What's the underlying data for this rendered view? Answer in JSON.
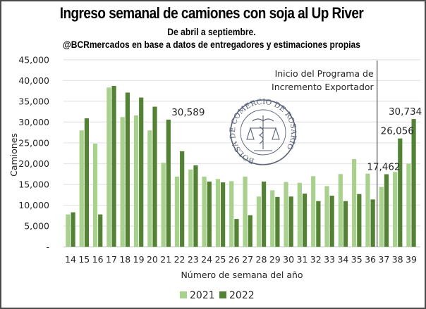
{
  "chart_data": {
    "type": "bar",
    "title": "Ingreso semanal de camiones con soja al Up River",
    "subtitle": "De abril a septiembre.",
    "source": "@BCRmercados en base a datos de entregadores y estimaciones propias",
    "xlabel": "Número de semana del año",
    "ylabel": "Camiones",
    "ylim": [
      0,
      45000
    ],
    "yticks": [
      0,
      5000,
      10000,
      15000,
      20000,
      25000,
      30000,
      35000,
      40000,
      45000
    ],
    "ytick_labels": [
      "-",
      "5,000",
      "10,000",
      "15,000",
      "20,000",
      "25,000",
      "30,000",
      "35,000",
      "40,000",
      "45,000"
    ],
    "grid": true,
    "legend_position": "bottom",
    "categories": [
      "14",
      "15",
      "16",
      "17",
      "18",
      "19",
      "20",
      "21",
      "22",
      "23",
      "24",
      "25",
      "26",
      "27",
      "28",
      "29",
      "30",
      "31",
      "32",
      "33",
      "34",
      "35",
      "36",
      "37",
      "38",
      "39"
    ],
    "series": [
      {
        "name": "2021",
        "color": "#a9d18e",
        "values": [
          7800,
          28000,
          24800,
          38300,
          31200,
          31600,
          28000,
          20200,
          16900,
          18600,
          16900,
          16300,
          15800,
          16900,
          12100,
          13600,
          15600,
          15400,
          17000,
          14600,
          17500,
          21100,
          17600,
          14400,
          18000,
          20000
        ]
      },
      {
        "name": "2022",
        "color": "#548235",
        "values": [
          8300,
          30900,
          7800,
          38700,
          37100,
          35900,
          33700,
          30589,
          23000,
          19600,
          15700,
          15500,
          6700,
          7600,
          15700,
          12000,
          12100,
          12800,
          11000,
          12300,
          11000,
          12700,
          11400,
          17462,
          26056,
          30734
        ]
      }
    ],
    "data_labels": [
      {
        "series": "2022",
        "category": "21",
        "text": "30,589"
      },
      {
        "series": "2022",
        "category": "37",
        "text": "17,462"
      },
      {
        "series": "2022",
        "category": "38",
        "text": "26,056"
      },
      {
        "series": "2022",
        "category": "39",
        "text": "30,734"
      }
    ],
    "annotations": [
      {
        "type": "vertical-line",
        "between": [
          "36",
          "37"
        ],
        "text_lines": [
          "Inicio del Programa de",
          "Incremento Exportador"
        ]
      }
    ],
    "watermark": {
      "text": "BOLSA DE COMERCIO DE ROSARIO",
      "color": "#3c4660"
    }
  }
}
